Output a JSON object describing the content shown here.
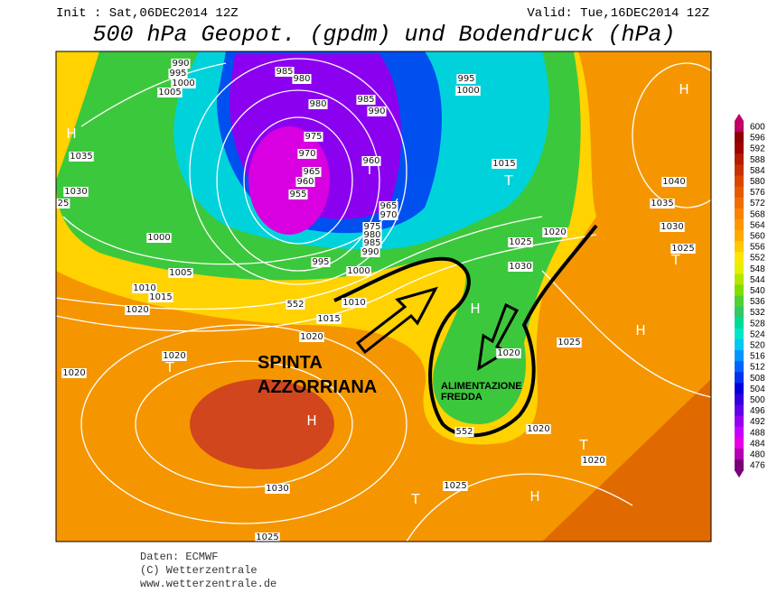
{
  "header": {
    "init": "Init : Sat,06DEC2014 12Z",
    "valid": "Valid: Tue,16DEC2014 12Z",
    "title": "500 hPa Geopot. (gpdm) und Bodendruck (hPa)"
  },
  "colorbar": {
    "labels": [
      600,
      596,
      592,
      588,
      584,
      580,
      576,
      572,
      568,
      564,
      560,
      556,
      552,
      548,
      544,
      540,
      536,
      532,
      528,
      524,
      520,
      516,
      512,
      508,
      504,
      500,
      496,
      492,
      488,
      484,
      480,
      476
    ],
    "colors": [
      "#c00064",
      "#8c0000",
      "#a00000",
      "#b41e00",
      "#c83200",
      "#dc4600",
      "#e65a00",
      "#f06e00",
      "#fa8200",
      "#ff9600",
      "#ffaa00",
      "#ffc800",
      "#ffe600",
      "#e6f000",
      "#b4e600",
      "#82dc00",
      "#50d232",
      "#32c864",
      "#00dc96",
      "#00e6c8",
      "#00c8f0",
      "#0096ff",
      "#0064ff",
      "#0032f0",
      "#0000dc",
      "#3200dc",
      "#6400e6",
      "#9600f0",
      "#c800ff",
      "#e600e6",
      "#b400b4",
      "#780078"
    ]
  },
  "map": {
    "pressure_labels": [
      "990",
      "995",
      "1000",
      "1005",
      "985",
      "980",
      "980",
      "985",
      "990",
      "975",
      "970",
      "965",
      "960",
      "955",
      "960",
      "965",
      "970",
      "975",
      "980",
      "985",
      "990",
      "995",
      "1000",
      "1005",
      "1010",
      "1015",
      "1020",
      "1035",
      "1030",
      "25",
      "1000",
      "1010",
      "1015",
      "1020",
      "1020",
      "1020",
      "1030",
      "1025",
      "995",
      "1000",
      "1015",
      "1025",
      "1020",
      "1030",
      "1025",
      "1020",
      "1020",
      "1020",
      "1025",
      "1040",
      "1035",
      "1030",
      "1025",
      "552",
      "552"
    ],
    "centers": [
      "H",
      "H",
      "T",
      "T",
      "T",
      "H",
      "H",
      "T",
      "H",
      "T",
      "H",
      "T"
    ],
    "annotations": [
      "SPINTA",
      "AZZORRIANA",
      "ALIMENTAZIONE",
      "FREDDA"
    ]
  },
  "footer": [
    "Daten: ECMWF",
    "(C) Wetterzentrale",
    "www.wetterzentrale.de"
  ]
}
